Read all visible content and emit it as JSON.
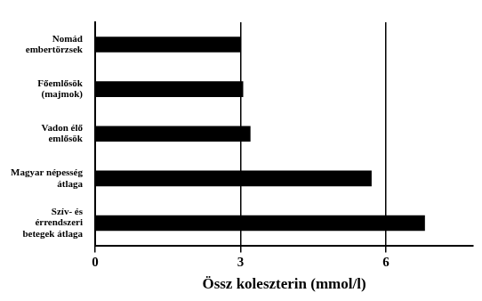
{
  "chart_data": {
    "type": "bar",
    "orientation": "horizontal",
    "x_label": "Össz koleszterin (mmol/l)",
    "categories": [
      "Nomád embertörzsek",
      "Főemlősök (majmok)",
      "Vadon élő emlősök",
      "Magyar népesség átlaga",
      "Szív- és érrendszeri betegek átlaga"
    ],
    "values": [
      3.0,
      3.05,
      3.2,
      5.7,
      6.8
    ],
    "color": "#000000",
    "xlim": [
      0,
      7.8
    ],
    "xticks": [
      0,
      3,
      6
    ],
    "grid": true
  }
}
